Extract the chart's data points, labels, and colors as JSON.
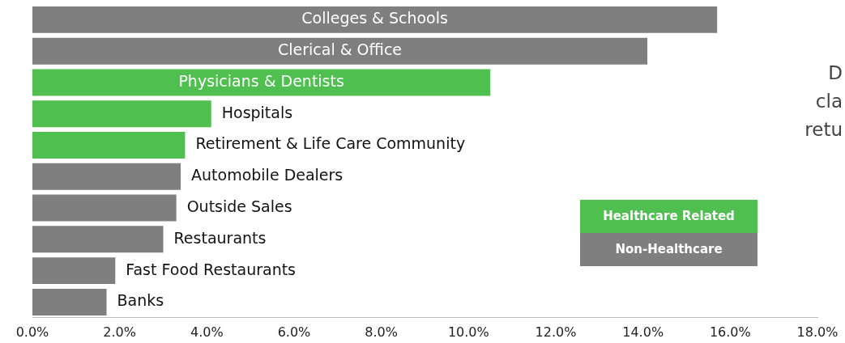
{
  "chart_data": {
    "type": "bar",
    "orientation": "horizontal",
    "stacked": true,
    "categories": [
      "Colleges & Schools",
      "Clerical & Office",
      "Physicians & Dentists",
      "Hospitals",
      "Retirement & Life Care Community",
      "Automobile Dealers",
      "Outside Sales",
      "Restaurants",
      "Fast Food Restaurants",
      "Banks"
    ],
    "series": [
      {
        "name": "Healthcare Related",
        "color": "#4fbf4f",
        "values": [
          null,
          null,
          10.5,
          4.1,
          3.5,
          null,
          null,
          null,
          null,
          null
        ]
      },
      {
        "name": "Non-Healthcare",
        "color": "#7f7f7f",
        "values": [
          15.7,
          14.1,
          null,
          null,
          null,
          3.4,
          3.3,
          3.0,
          1.9,
          1.7
        ]
      }
    ],
    "xlim": [
      0,
      18
    ],
    "xticks": [
      {
        "value": 0,
        "label": "0.0%"
      },
      {
        "value": 2,
        "label": "2.0%"
      },
      {
        "value": 4,
        "label": "4.0%"
      },
      {
        "value": 6,
        "label": "6.0%"
      },
      {
        "value": 8,
        "label": "8.0%"
      },
      {
        "value": 10,
        "label": "10.0%"
      },
      {
        "value": 12,
        "label": "12.0%"
      },
      {
        "value": 14,
        "label": "14.0%"
      },
      {
        "value": 16,
        "label": "16.0%"
      },
      {
        "value": 18,
        "label": "18.0%"
      }
    ],
    "grid": false,
    "legend": "right",
    "annotations": [
      "D",
      "cla",
      "retu"
    ]
  }
}
